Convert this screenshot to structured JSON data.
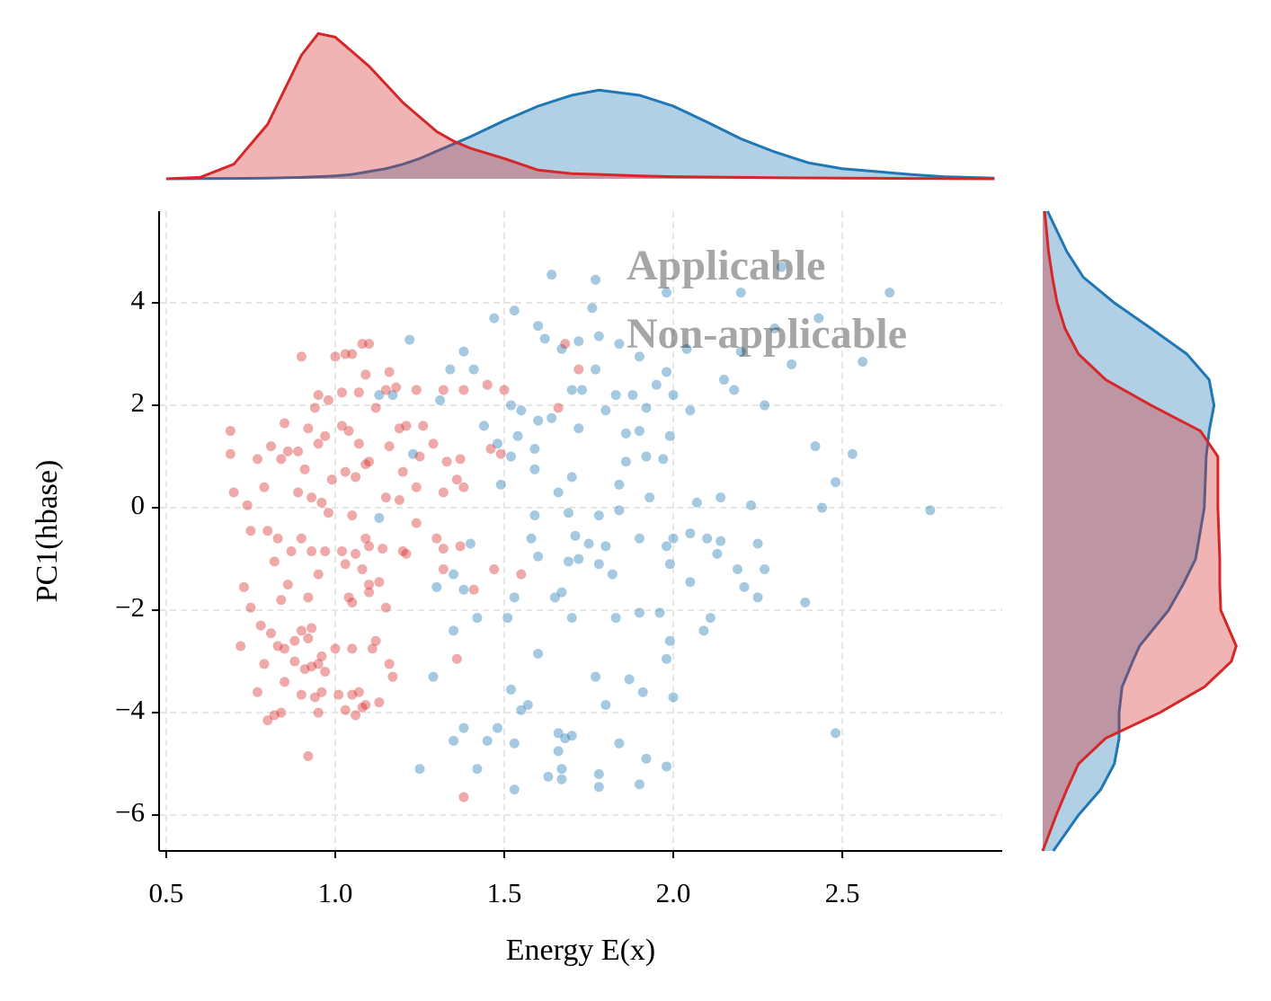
{
  "chart_data": [
    {
      "type": "scatter",
      "xlabel": "Energy E(x)",
      "ylabel": "PC1(hbase)",
      "xlim": [
        0.479,
        2.973
      ],
      "ylim": [
        -6.7,
        5.79
      ],
      "xticks": [
        0.5,
        {
          "value": 1,
          "label": "1.0"
        },
        1.5,
        {
          "value": 2,
          "label": "2.0"
        },
        2.5
      ],
      "yticks": [
        {
          "value": -6,
          "label": "−6"
        },
        {
          "value": -4,
          "label": "−4"
        },
        {
          "value": -2,
          "label": "−2"
        },
        0,
        2,
        4
      ],
      "grid": true,
      "legend": "upper right",
      "series": [
        {
          "name": "Applicable",
          "color": "#1f77b4",
          "x": [
            1.64,
            1.77,
            1.98,
            2.2,
            2.32,
            2.64,
            1.47,
            1.53,
            1.76,
            1.6,
            1.62,
            1.67,
            1.72,
            1.78,
            1.84,
            1.9,
            1.98,
            2.04,
            2.2,
            2.3,
            2.43,
            2.56,
            2.35,
            1.22,
            1.38,
            1.34,
            1.41,
            1.13,
            1.17,
            1.31,
            1.52,
            1.55,
            1.6,
            1.64,
            1.7,
            1.73,
            1.77,
            1.83,
            1.88,
            1.95,
            1.92,
            2.0,
            2.05,
            2.15,
            2.18,
            2.27,
            1.44,
            1.48,
            1.54,
            1.72,
            1.8,
            1.86,
            1.9,
            1.99,
            2.42,
            2.53,
            2.48,
            2.44,
            2.76,
            1.23,
            1.52,
            1.59,
            1.7,
            1.86,
            1.92,
            1.97,
            1.49,
            1.59,
            1.66,
            1.84,
            1.93,
            2.07,
            2.14,
            2.23,
            1.69,
            1.78,
            1.84,
            1.59,
            1.13,
            1.4,
            1.58,
            1.6,
            1.71,
            1.75,
            1.8,
            1.9,
            1.98,
            2.0,
            2.05,
            2.1,
            2.14,
            2.25,
            2.13,
            1.69,
            1.72,
            1.78,
            1.82,
            1.99,
            2.05,
            2.19,
            2.27,
            2.21,
            2.25,
            2.39,
            1.3,
            1.35,
            1.38,
            1.53,
            1.65,
            1.67,
            1.42,
            1.51,
            1.7,
            1.83,
            1.9,
            1.96,
            2.09,
            2.11,
            1.35,
            1.99,
            1.6,
            1.98,
            1.29,
            1.77,
            1.87,
            1.52,
            1.91,
            2.0,
            1.8,
            1.55,
            1.57,
            1.38,
            1.48,
            1.35,
            1.45,
            1.53,
            1.66,
            1.68,
            1.7,
            1.66,
            1.84,
            1.92,
            1.98,
            1.63,
            1.67,
            1.67,
            1.25,
            1.42,
            1.78,
            1.53,
            1.78,
            1.9,
            2.48
          ],
          "values": [
            4.55,
            4.45,
            4.2,
            4.2,
            4.7,
            4.2,
            3.7,
            3.85,
            3.9,
            3.55,
            3.3,
            3.1,
            3.25,
            3.35,
            3.2,
            2.95,
            2.65,
            3.1,
            3.05,
            3.5,
            3.7,
            2.85,
            2.8,
            3.28,
            3.05,
            2.7,
            2.7,
            2.2,
            2.2,
            2.1,
            2.0,
            1.9,
            1.7,
            1.75,
            2.3,
            2.3,
            2.7,
            2.2,
            2.2,
            2.4,
            1.95,
            2.2,
            1.9,
            2.5,
            2.3,
            2.0,
            1.6,
            1.25,
            1.4,
            1.55,
            1.9,
            1.45,
            1.5,
            1.4,
            1.2,
            1.05,
            0.5,
            0,
            -0.05,
            1.05,
            1.0,
            1.15,
            0.6,
            0.9,
            1.0,
            0.95,
            0.45,
            0.75,
            0.3,
            0.45,
            0.2,
            0.1,
            0.2,
            0.05,
            -0.1,
            -0.15,
            -0.05,
            -0.15,
            -0.2,
            -0.7,
            -0.6,
            -0.95,
            -0.55,
            -0.7,
            -0.75,
            -0.6,
            -0.75,
            -0.6,
            -0.5,
            -0.6,
            -0.65,
            -0.7,
            -0.9,
            -1.05,
            -1.0,
            -1.1,
            -1.3,
            -1.1,
            -1.45,
            -1.2,
            -1.2,
            -1.55,
            -1.75,
            -1.85,
            -1.55,
            -1.3,
            -1.6,
            -1.75,
            -1.75,
            -1.65,
            -2.15,
            -2.15,
            -2.15,
            -2.15,
            -2.05,
            -2.05,
            -2.4,
            -2.15,
            -2.4,
            -2.6,
            -2.85,
            -2.95,
            -3.3,
            -3.3,
            -3.35,
            -3.55,
            -3.6,
            -3.7,
            -3.85,
            -3.95,
            -3.85,
            -4.3,
            -4.3,
            -4.55,
            -4.55,
            -4.6,
            -4.4,
            -4.5,
            -4.45,
            -4.75,
            -4.6,
            -4.9,
            -5.05,
            -5.25,
            -5.1,
            -5.3,
            -5.1,
            -5.1,
            -5.2,
            -5.5,
            -5.45,
            -5.4,
            -4.4
          ]
        },
        {
          "name": "Non-applicable",
          "color": "#d62728",
          "x": [
            0.9,
            1.0,
            1.05,
            1.08,
            1.1,
            1.03,
            1.09,
            1.16,
            1.18,
            1.15,
            1.24,
            1.32,
            1.38,
            1.45,
            1.5,
            1.68,
            1.72,
            1.66,
            0.95,
            1.02,
            1.07,
            1.12,
            1.21,
            1.26,
            1.19,
            0.98,
            0.94,
            0.85,
            0.92,
            0.95,
            0.97,
            1.02,
            1.04,
            1.07,
            1.16,
            1.25,
            1.29,
            1.33,
            1.37,
            1.46,
            1.49,
            0.69,
            0.69,
            0.77,
            0.81,
            0.86,
            0.89,
            0.84,
            0.91,
            0.99,
            1.03,
            1.06,
            1.09,
            1.1,
            1.2,
            1.24,
            1.32,
            1.36,
            1.38,
            0.7,
            0.74,
            0.79,
            0.89,
            0.93,
            0.96,
            0.98,
            1.05,
            1.15,
            1.19,
            1.24,
            0.75,
            0.8,
            0.83,
            0.87,
            0.82,
            0.9,
            0.93,
            0.97,
            1.02,
            1.06,
            1.09,
            1.1,
            1.14,
            1.2,
            1.21,
            1.3,
            1.32,
            1.37,
            0.95,
            1.03,
            1.08,
            1.1,
            1.13,
            1.32,
            1.47,
            1.55,
            0.73,
            0.86,
            0.84,
            0.92,
            1.04,
            1.05,
            1.1,
            1.15,
            1.41,
            0.75,
            0.78,
            0.81,
            0.83,
            0.85,
            0.88,
            0.9,
            0.92,
            0.93,
            0.96,
            1.0,
            1.12,
            1.11,
            1.05,
            0.72,
            0.79,
            0.88,
            0.91,
            0.93,
            0.95,
            0.97,
            1.16,
            1.17,
            1.36,
            0.77,
            0.85,
            0.9,
            0.94,
            0.96,
            1.01,
            1.05,
            1.07,
            1.09,
            1.13,
            0.8,
            0.82,
            0.84,
            0.95,
            1.03,
            1.08,
            1.06,
            0.92,
            1.38
          ],
          "values": [
            2.95,
            2.95,
            3.0,
            3.2,
            3.2,
            3.0,
            2.6,
            2.65,
            2.35,
            2.3,
            2.3,
            2.3,
            2.3,
            2.4,
            2.3,
            3.2,
            2.7,
            1.95,
            2.2,
            2.25,
            2.25,
            1.95,
            1.6,
            1.6,
            1.55,
            2.1,
            1.95,
            1.65,
            1.55,
            1.25,
            1.4,
            1.6,
            1.5,
            1.25,
            1.2,
            1.0,
            1.25,
            0.9,
            0.95,
            1.15,
            1.05,
            1.5,
            1.05,
            0.95,
            1.2,
            1.1,
            1.1,
            0.95,
            0.75,
            0.55,
            0.7,
            0.6,
            0.85,
            0.9,
            0.7,
            0.4,
            0.3,
            0.55,
            0.4,
            0.3,
            0.05,
            0.4,
            0.3,
            0.2,
            0.1,
            -0.1,
            -0.15,
            0.2,
            0.15,
            -0.3,
            -0.45,
            -0.45,
            -0.6,
            -0.85,
            -1.05,
            -0.6,
            -0.85,
            -0.85,
            -0.85,
            -0.9,
            -0.6,
            -0.75,
            -0.8,
            -0.85,
            -0.9,
            -0.6,
            -0.8,
            -0.75,
            -1.3,
            -1.1,
            -1.2,
            -1.5,
            -1.45,
            -1.2,
            -1.2,
            -1.3,
            -1.55,
            -1.5,
            -1.8,
            -1.75,
            -1.75,
            -1.85,
            -1.65,
            -1.95,
            -1.6,
            -1.95,
            -2.3,
            -2.45,
            -2.7,
            -2.75,
            -2.6,
            -2.4,
            -2.55,
            -2.35,
            -2.9,
            -2.75,
            -2.6,
            -2.75,
            -2.75,
            -2.7,
            -3.05,
            -3.0,
            -3.15,
            -3.1,
            -3.05,
            -3.2,
            -3.05,
            -3.3,
            -2.95,
            -3.6,
            -3.4,
            -3.65,
            -3.7,
            -3.6,
            -3.65,
            -3.65,
            -3.6,
            -3.85,
            -3.8,
            -4.15,
            -4.05,
            -4.0,
            -4.0,
            -3.95,
            -3.9,
            -4.05,
            -4.85,
            -5.65
          ]
        }
      ]
    },
    {
      "type": "kde",
      "orientation": "vertical",
      "xlim": [
        0.479,
        2.973
      ],
      "ylim": [
        0,
        2.09
      ],
      "x": [
        0.5,
        0.6,
        0.7,
        0.8,
        0.9,
        0.95,
        1.0,
        1.05,
        1.1,
        1.15,
        1.2,
        1.25,
        1.3,
        1.35,
        1.4,
        1.5,
        1.6,
        1.7,
        1.78,
        1.9,
        2.0,
        2.1,
        2.2,
        2.3,
        2.4,
        2.5,
        2.6,
        2.7,
        2.8,
        2.95
      ],
      "series": [
        {
          "name": "Applicable",
          "color": "#1f77b4",
          "values": [
            0,
            0.003,
            0.005,
            0.01,
            0.02,
            0.03,
            0.04,
            0.06,
            0.1,
            0.14,
            0.2,
            0.28,
            0.38,
            0.48,
            0.58,
            0.8,
            1.0,
            1.15,
            1.22,
            1.15,
            1.0,
            0.78,
            0.55,
            0.37,
            0.22,
            0.14,
            0.1,
            0.06,
            0.03,
            0.01
          ]
        },
        {
          "name": "Non-applicable",
          "color": "#d62728",
          "values": [
            0,
            0.02,
            0.2,
            0.75,
            1.7,
            2.0,
            1.95,
            1.75,
            1.55,
            1.3,
            1.05,
            0.85,
            0.65,
            0.52,
            0.42,
            0.28,
            0.12,
            0.07,
            0.06,
            0.04,
            0.03,
            0.025,
            0.02,
            0.015,
            0.012,
            0.01,
            0.008,
            0.005,
            0.003,
            0
          ]
        }
      ]
    },
    {
      "type": "kde",
      "orientation": "horizontal",
      "xlim": [
        0,
        0.209
      ],
      "ylim": [
        -6.7,
        5.79
      ],
      "y": [
        -6.7,
        -6,
        -5.5,
        -5,
        -4.5,
        -4,
        -3.5,
        -3,
        -2.7,
        -2,
        -1.5,
        -1,
        0,
        1,
        1.5,
        2,
        2.5,
        3,
        3.5,
        4,
        4.5,
        5,
        5.79
      ],
      "series": [
        {
          "name": "Applicable",
          "color": "#1f77b4",
          "values": [
            0.011,
            0.037,
            0.06,
            0.074,
            0.079,
            0.079,
            0.082,
            0.093,
            0.1,
            0.13,
            0.145,
            0.158,
            0.167,
            0.169,
            0.172,
            0.177,
            0.172,
            0.149,
            0.112,
            0.074,
            0.042,
            0.025,
            0.005
          ]
        },
        {
          "name": "Non-applicable",
          "color": "#d62728",
          "values": [
            0,
            0.014,
            0.025,
            0.037,
            0.065,
            0.121,
            0.167,
            0.195,
            0.2,
            0.184,
            0.183,
            0.183,
            0.181,
            0.181,
            0.163,
            0.112,
            0.065,
            0.037,
            0.023,
            0.015,
            0.01,
            0.006,
            0.002
          ]
        }
      ]
    }
  ]
}
